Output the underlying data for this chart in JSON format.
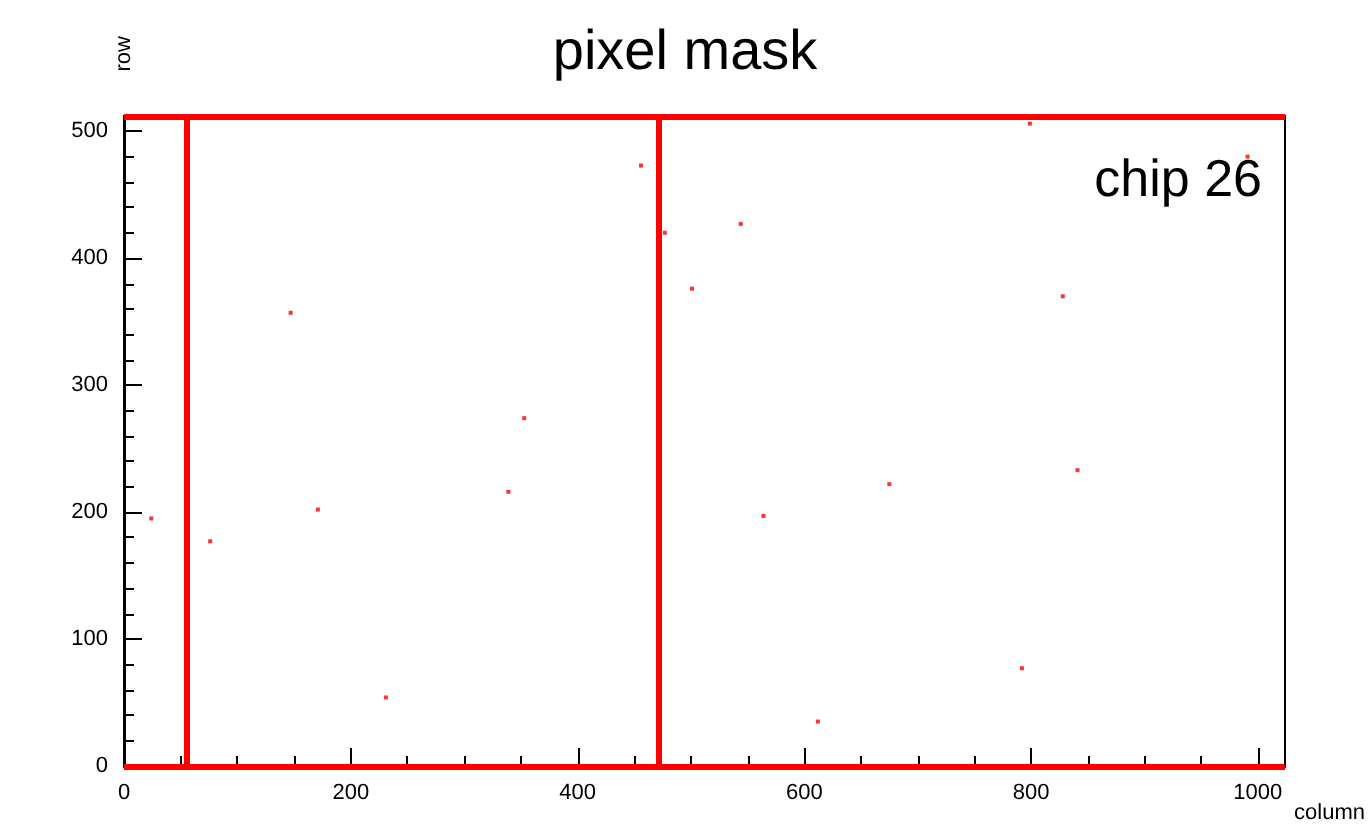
{
  "chart_data": {
    "type": "scatter",
    "title": "pixel mask",
    "xlabel": "column",
    "ylabel": "row",
    "annotations": [
      "chip 26"
    ],
    "x": [
      147,
      456,
      477,
      353,
      339,
      544,
      501,
      799,
      991,
      828,
      841,
      675,
      24,
      76,
      171,
      231,
      564,
      792,
      612
    ],
    "series": [
      {
        "color": "#ff0000",
        "values": [
          357,
          473,
          420,
          274,
          216,
          427,
          376,
          506,
          480,
          370,
          233,
          222,
          195,
          177,
          202,
          54,
          197,
          77,
          35
        ]
      }
    ],
    "xlim": [
      0,
      1024
    ],
    "ylim": [
      0,
      512
    ],
    "xticks": [
      0,
      200,
      400,
      600,
      800,
      1000
    ],
    "yticks": [
      0,
      100,
      200,
      300,
      400,
      500
    ],
    "ref_lines": [
      {
        "axis": "x",
        "value": 55,
        "color": "#ff0000"
      },
      {
        "axis": "x",
        "value": 472,
        "color": "#ff0000"
      },
      {
        "axis": "y",
        "value": 0,
        "color": "#ff0000"
      },
      {
        "axis": "y",
        "value": 511,
        "color": "#ff0000"
      }
    ],
    "grid": false,
    "marker": "square"
  }
}
